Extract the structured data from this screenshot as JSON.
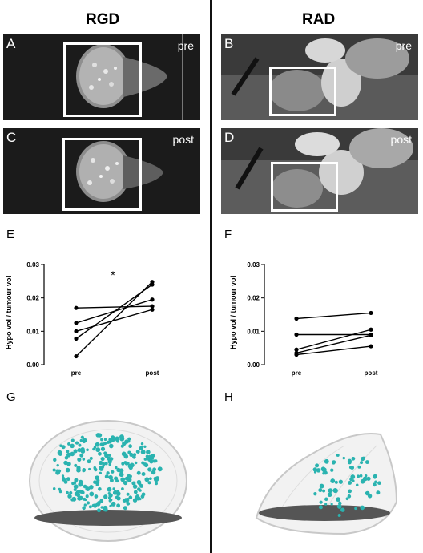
{
  "columns": {
    "left_title": "RGD",
    "right_title": "RAD"
  },
  "mri_panels": [
    {
      "letter": "A",
      "tag": "pre"
    },
    {
      "letter": "B",
      "tag": "pre"
    },
    {
      "letter": "C",
      "tag": "post"
    },
    {
      "letter": "D",
      "tag": "post"
    }
  ],
  "plot_letters": {
    "e": "E",
    "f": "F"
  },
  "render_letters": {
    "g": "G",
    "h": "H"
  },
  "colors": {
    "ink": "#000000",
    "tumour_dots": "#2ab3b0",
    "mri_bg": "#1b1b1b"
  },
  "chart_data": [
    {
      "type": "line",
      "panel": "E",
      "ylabel": "Hypo vol / tumour vol",
      "categories": [
        "pre",
        "post"
      ],
      "ylim": [
        0.0,
        0.03
      ],
      "yticks": [
        "0.00",
        "0.01",
        "0.02",
        "0.03"
      ],
      "annotation": "*",
      "lines": [
        [
          0.017,
          0.0175
        ],
        [
          0.0125,
          0.0195
        ],
        [
          0.01,
          0.0165
        ],
        [
          0.0078,
          0.024
        ],
        [
          0.0025,
          0.0248
        ]
      ]
    },
    {
      "type": "line",
      "panel": "F",
      "ylabel": "Hypo vol / tumour vol",
      "categories": [
        "pre",
        "post"
      ],
      "ylim": [
        0.0,
        0.03
      ],
      "yticks": [
        "0.00",
        "0.01",
        "0.02",
        "0.03"
      ],
      "lines": [
        [
          0.0138,
          0.0155
        ],
        [
          0.009,
          0.009
        ],
        [
          0.0045,
          0.0105
        ],
        [
          0.0035,
          0.0088
        ],
        [
          0.003,
          0.0055
        ]
      ]
    }
  ]
}
